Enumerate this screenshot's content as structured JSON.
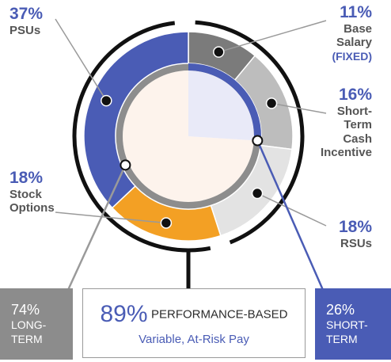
{
  "chart_data": {
    "type": "pie",
    "slices": [
      {
        "label_lines": [
          "Base",
          "Salary"
        ],
        "extra": "(FIXED)",
        "value": 11,
        "pct_text": "11%",
        "color": "#7b7b7b"
      },
      {
        "label_lines": [
          "Short-",
          "Term",
          "Cash",
          "Incentive"
        ],
        "value": 16,
        "pct_text": "16%",
        "color": "#bdbdbd"
      },
      {
        "label_lines": [
          "RSUs"
        ],
        "value": 18,
        "pct_text": "18%",
        "color": "#e3e3e3"
      },
      {
        "label_lines": [
          "Stock",
          "Options"
        ],
        "value": 18,
        "pct_text": "18%",
        "color": "#f3a024"
      },
      {
        "label_lines": [
          "PSUs"
        ],
        "value": 37,
        "pct_text": "37%",
        "color": "#4a5cb5"
      }
    ],
    "inner_pie": {
      "short_term_share": 26,
      "long_term_share": 74,
      "short_color": "#e9eaf8",
      "long_color": "#fdf3ec"
    }
  },
  "boxes": {
    "long_term": {
      "pct": "74%",
      "line1": "LONG-",
      "line2": "TERM",
      "color": "#8c8c8c"
    },
    "short_term": {
      "pct": "26%",
      "line1": "SHORT-",
      "line2": "TERM",
      "color": "#4a5cb5"
    }
  },
  "center": {
    "pct": "89%",
    "title": "PERFORMANCE-BASED",
    "subtitle": "Variable, At-Risk Pay"
  }
}
